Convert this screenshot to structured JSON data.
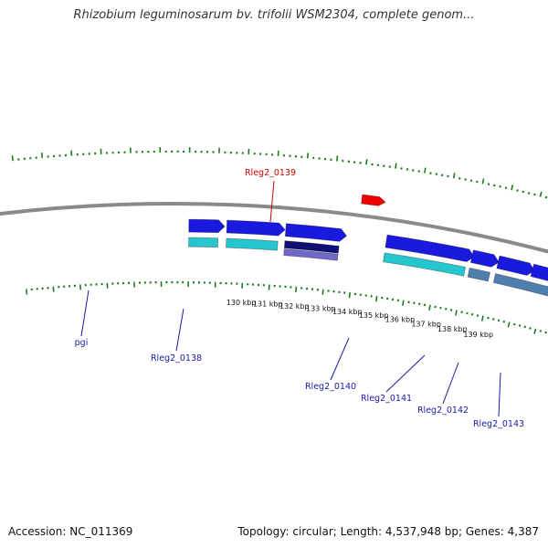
{
  "title": "Rhizobium leguminosarum bv. trifolii WSM2304, complete genom...",
  "footer": {
    "accession": "Accession: NC_011369",
    "summary": "Topology: circular; Length: 4,537,948 bp; Genes: 4,387"
  },
  "colors": {
    "backbone": "#8a8a8a",
    "tick": "#1f7a1f",
    "gene_blue": "#1a1adf",
    "gene_cyan": "#26c6cf",
    "gene_navy": "#0e1075",
    "gene_purple": "#7068c9",
    "gene_steel": "#4f7fae",
    "gene_red": "#ee0000",
    "label_blue": "#1a1aaa",
    "label_red": "#cc0000"
  },
  "tick_labels": [
    {
      "kbp": 130,
      "label": "130 kbp"
    },
    {
      "kbp": 131,
      "label": "131 kbp"
    },
    {
      "kbp": 132,
      "label": "132 kbp"
    },
    {
      "kbp": 133,
      "label": "133 kbp"
    },
    {
      "kbp": 134,
      "label": "134 kbp"
    },
    {
      "kbp": 135,
      "label": "135 kbp"
    },
    {
      "kbp": 136,
      "label": "136 kbp"
    },
    {
      "kbp": 137,
      "label": "137 kbp"
    },
    {
      "kbp": 138,
      "label": "138 kbp"
    },
    {
      "kbp": 139,
      "label": "139 kbp"
    }
  ],
  "gene_labels": [
    {
      "name": "pgi",
      "color": "label_blue"
    },
    {
      "name": "Rleg2_0138",
      "color": "label_blue"
    },
    {
      "name": "Rleg2_0139",
      "color": "label_red"
    },
    {
      "name": "Rleg2_0140",
      "color": "label_blue"
    },
    {
      "name": "Rleg2_0141",
      "color": "label_blue"
    },
    {
      "name": "Rleg2_0142",
      "color": "label_blue"
    },
    {
      "name": "Rleg2_0143",
      "color": "label_blue"
    }
  ]
}
